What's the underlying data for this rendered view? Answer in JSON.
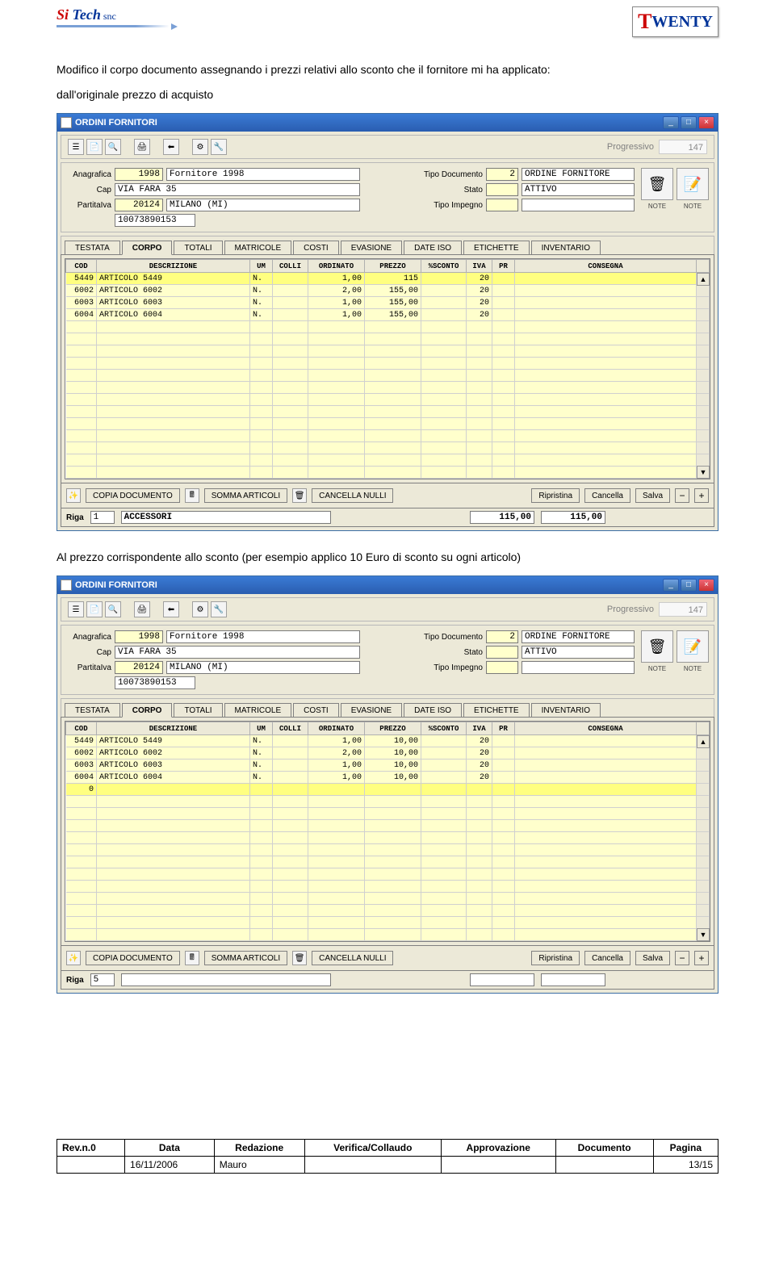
{
  "header": {
    "logo_left": {
      "si": "Si",
      "tech": " Tech",
      "snc": " snc"
    },
    "logo_right": {
      "t": "T",
      "rest": "WENTY"
    }
  },
  "doc_text": {
    "p1": "Modifico il corpo documento assegnando i prezzi relativi allo sconto che il fornitore mi ha applicato:",
    "p2": "dall'originale prezzo di acquisto",
    "p3": "Al prezzo corrispondente allo sconto (per esempio applico 10 Euro di sconto su ogni articolo)"
  },
  "window": {
    "title": "ORDINI FORNITORI",
    "progressivo_label": "Progressivo",
    "progressivo_value": "147",
    "anagrafica_label": "Anagrafica",
    "anagrafica_code": "1998",
    "anagrafica_desc": "Fornitore 1998",
    "tipo_doc_label": "Tipo Documento",
    "tipo_doc_code": "2",
    "tipo_doc_desc": "ORDINE FORNITORE",
    "cap_label": "Cap",
    "indirizzo": "VIA FARA 35",
    "stato_label": "Stato",
    "stato_val": "ATTIVO",
    "partitaiva_label": "PartitaIva",
    "partitaiva_code": "20124",
    "citta": "MILANO (MI)",
    "partitaiva_num": "10073890153",
    "tipo_impegno_label": "Tipo Impegno",
    "note1": "NOTE",
    "note2": "NOTE",
    "tabs": [
      "TESTATA",
      "CORPO",
      "TOTALI",
      "MATRICOLE",
      "COSTI",
      "EVASIONE",
      "DATE ISO",
      "ETICHETTE",
      "INVENTARIO"
    ],
    "active_tab": 1,
    "grid_headers": [
      "COD",
      "DESCRIZIONE",
      "UM",
      "COLLI",
      "ORDINATO",
      "PREZZO",
      "%SCONTO",
      "IVA",
      "PR",
      "CONSEGNA"
    ],
    "col_widths": [
      "38px",
      "190px",
      "28px",
      "44px",
      "70px",
      "70px",
      "56px",
      "32px",
      "28px",
      "auto"
    ],
    "btn_copia": "COPIA DOCUMENTO",
    "btn_somma": "SOMMA ARTICOLI",
    "btn_cancella": "CANCELLA NULLI",
    "btn_ripristina": "Ripristina",
    "btn_cancella2": "Cancella",
    "btn_salva": "Salva"
  },
  "screenshot1": {
    "rows": [
      {
        "cod": "5449",
        "desc": "ARTICOLO 5449",
        "um": "N.",
        "colli": "",
        "ord": "1,00",
        "prezzo": "115",
        "sconto": "",
        "iva": "20",
        "pr": "",
        "cons": "",
        "sel": true,
        "hl_prezzo": true
      },
      {
        "cod": "6002",
        "desc": "ARTICOLO 6002",
        "um": "N.",
        "colli": "",
        "ord": "2,00",
        "prezzo": "155,00",
        "sconto": "",
        "iva": "20",
        "pr": "",
        "cons": ""
      },
      {
        "cod": "6003",
        "desc": "ARTICOLO 6003",
        "um": "N.",
        "colli": "",
        "ord": "1,00",
        "prezzo": "155,00",
        "sconto": "",
        "iva": "20",
        "pr": "",
        "cons": ""
      },
      {
        "cod": "6004",
        "desc": "ARTICOLO 6004",
        "um": "N.",
        "colli": "",
        "ord": "1,00",
        "prezzo": "155,00",
        "sconto": "",
        "iva": "20",
        "pr": "",
        "cons": ""
      }
    ],
    "empty_rows": 13,
    "status_riga_lbl": "Riga",
    "status_riga": "1",
    "status_desc": "ACCESSORI",
    "status_v1": "115,00",
    "status_v2": "115,00"
  },
  "screenshot2": {
    "rows": [
      {
        "cod": "5449",
        "desc": "ARTICOLO 5449",
        "um": "N.",
        "colli": "",
        "ord": "1,00",
        "prezzo": "10,00",
        "sconto": "",
        "iva": "20",
        "pr": "",
        "cons": ""
      },
      {
        "cod": "6002",
        "desc": "ARTICOLO 6002",
        "um": "N.",
        "colli": "",
        "ord": "2,00",
        "prezzo": "10,00",
        "sconto": "",
        "iva": "20",
        "pr": "",
        "cons": ""
      },
      {
        "cod": "6003",
        "desc": "ARTICOLO 6003",
        "um": "N.",
        "colli": "",
        "ord": "1,00",
        "prezzo": "10,00",
        "sconto": "",
        "iva": "20",
        "pr": "",
        "cons": ""
      },
      {
        "cod": "6004",
        "desc": "ARTICOLO 6004",
        "um": "N.",
        "colli": "",
        "ord": "1,00",
        "prezzo": "10,00",
        "sconto": "",
        "iva": "20",
        "pr": "",
        "cons": ""
      },
      {
        "cod": "0",
        "desc": "",
        "um": "",
        "colli": "",
        "ord": "",
        "prezzo": "",
        "sconto": "",
        "iva": "",
        "pr": "",
        "cons": "",
        "sel": true
      }
    ],
    "empty_rows": 12,
    "status_riga_lbl": "Riga",
    "status_riga": "5",
    "status_desc": "",
    "status_v1": "",
    "status_v2": ""
  },
  "footer": {
    "headers": [
      "Rev.n.0",
      "Data",
      "Redazione",
      "Verifica/Collaudo",
      "Approvazione",
      "Documento",
      "Pagina"
    ],
    "row": [
      "",
      "16/11/2006",
      "Mauro",
      "",
      "",
      "",
      "13/15"
    ]
  }
}
